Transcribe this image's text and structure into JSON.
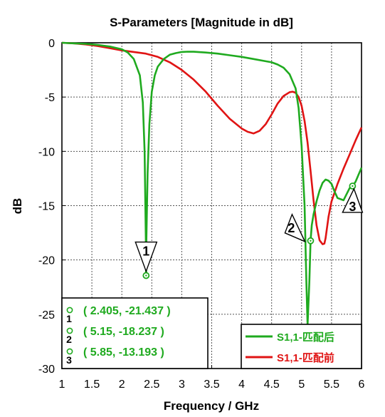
{
  "chart_data": {
    "type": "line",
    "title": "S-Parameters [Magnitude in dB]",
    "xlabel": "Frequency / GHz",
    "ylabel": "dB",
    "xlim": [
      1,
      6
    ],
    "ylim": [
      -30,
      0
    ],
    "xticks": [
      1,
      1.5,
      2,
      2.5,
      3,
      3.5,
      4,
      4.5,
      5,
      5.5,
      6
    ],
    "xtick_labels": [
      "1",
      "1.5",
      "2",
      "2.5",
      "3",
      "3.5",
      "4",
      "4.5",
      "5",
      "5.5",
      "6"
    ],
    "yticks": [
      0,
      -5,
      -10,
      -15,
      -20,
      -25,
      -30
    ],
    "ytick_labels": [
      "0",
      "-5",
      "-10",
      "-15",
      "-20",
      "-25",
      "-30"
    ],
    "grid": true,
    "legend_position": "bottom-right",
    "series": [
      {
        "name": "S1,1-匹配后",
        "color": "#1faa1f",
        "x": [
          1.0,
          1.2,
          1.4,
          1.6,
          1.8,
          2.0,
          2.1,
          2.2,
          2.3,
          2.35,
          2.38,
          2.4,
          2.405,
          2.41,
          2.43,
          2.46,
          2.5,
          2.55,
          2.6,
          2.7,
          2.8,
          2.9,
          3.0,
          3.1,
          3.2,
          3.4,
          3.6,
          3.8,
          4.0,
          4.2,
          4.4,
          4.5,
          4.6,
          4.7,
          4.8,
          4.9,
          4.95,
          5.0,
          5.05,
          5.08,
          5.1,
          5.13,
          5.15,
          5.17,
          5.2,
          5.25,
          5.3,
          5.35,
          5.4,
          5.45,
          5.5,
          5.55,
          5.6,
          5.7,
          5.8,
          5.85,
          5.9,
          6.0
        ],
        "y": [
          0.0,
          -0.05,
          -0.1,
          -0.2,
          -0.35,
          -0.6,
          -0.9,
          -1.5,
          -3.0,
          -5.5,
          -10.0,
          -18.0,
          -21.437,
          -18.0,
          -12.0,
          -7.5,
          -4.5,
          -3.0,
          -2.2,
          -1.5,
          -1.1,
          -0.95,
          -0.85,
          -0.82,
          -0.83,
          -0.9,
          -1.0,
          -1.15,
          -1.3,
          -1.5,
          -1.7,
          -1.8,
          -2.0,
          -2.3,
          -2.9,
          -4.2,
          -6.0,
          -9.5,
          -15.0,
          -22.0,
          -26.0,
          -22.0,
          -18.237,
          -16.8,
          -15.8,
          -14.6,
          -13.6,
          -12.9,
          -12.6,
          -12.7,
          -13.0,
          -13.7,
          -14.3,
          -14.5,
          -13.4,
          -13.193,
          -12.8,
          -11.5
        ]
      },
      {
        "name": "S1,1-匹配前",
        "color": "#e01414",
        "x": [
          1.0,
          1.2,
          1.4,
          1.6,
          1.8,
          2.0,
          2.2,
          2.4,
          2.6,
          2.8,
          3.0,
          3.2,
          3.4,
          3.6,
          3.8,
          4.0,
          4.1,
          4.2,
          4.3,
          4.4,
          4.5,
          4.6,
          4.7,
          4.8,
          4.85,
          4.9,
          4.95,
          5.0,
          5.05,
          5.1,
          5.15,
          5.2,
          5.25,
          5.3,
          5.35,
          5.38,
          5.4,
          5.45,
          5.5,
          5.55,
          5.6,
          5.7,
          5.8,
          5.9,
          6.0
        ],
        "y": [
          0.0,
          -0.05,
          -0.15,
          -0.3,
          -0.5,
          -0.7,
          -0.85,
          -1.0,
          -1.3,
          -1.8,
          -2.5,
          -3.4,
          -4.5,
          -5.8,
          -7.0,
          -7.9,
          -8.2,
          -8.35,
          -8.1,
          -7.5,
          -6.6,
          -5.6,
          -4.9,
          -4.55,
          -4.5,
          -4.6,
          -5.0,
          -5.8,
          -7.2,
          -9.2,
          -11.8,
          -14.5,
          -16.8,
          -18.2,
          -18.55,
          -18.5,
          -18.0,
          -16.0,
          -14.6,
          -13.8,
          -13.0,
          -11.6,
          -10.3,
          -9.0,
          -7.8
        ]
      }
    ],
    "markers": [
      {
        "label": "1",
        "series": "S1,1-匹配后",
        "x": 2.405,
        "y": -21.437,
        "pointer": "below"
      },
      {
        "label": "2",
        "series": "S1,1-匹配后",
        "x": 5.15,
        "y": -18.237,
        "pointer": "left"
      },
      {
        "label": "3",
        "series": "S1,1-匹配后",
        "x": 5.85,
        "y": -13.193,
        "pointer": "right"
      }
    ],
    "marker_readouts": [
      {
        "label": "1",
        "text": "( 2.405, -21.437 )"
      },
      {
        "label": "2",
        "text": "( 5.15, -18.237 )"
      },
      {
        "label": "3",
        "text": "( 5.85, -13.193 )"
      }
    ]
  }
}
